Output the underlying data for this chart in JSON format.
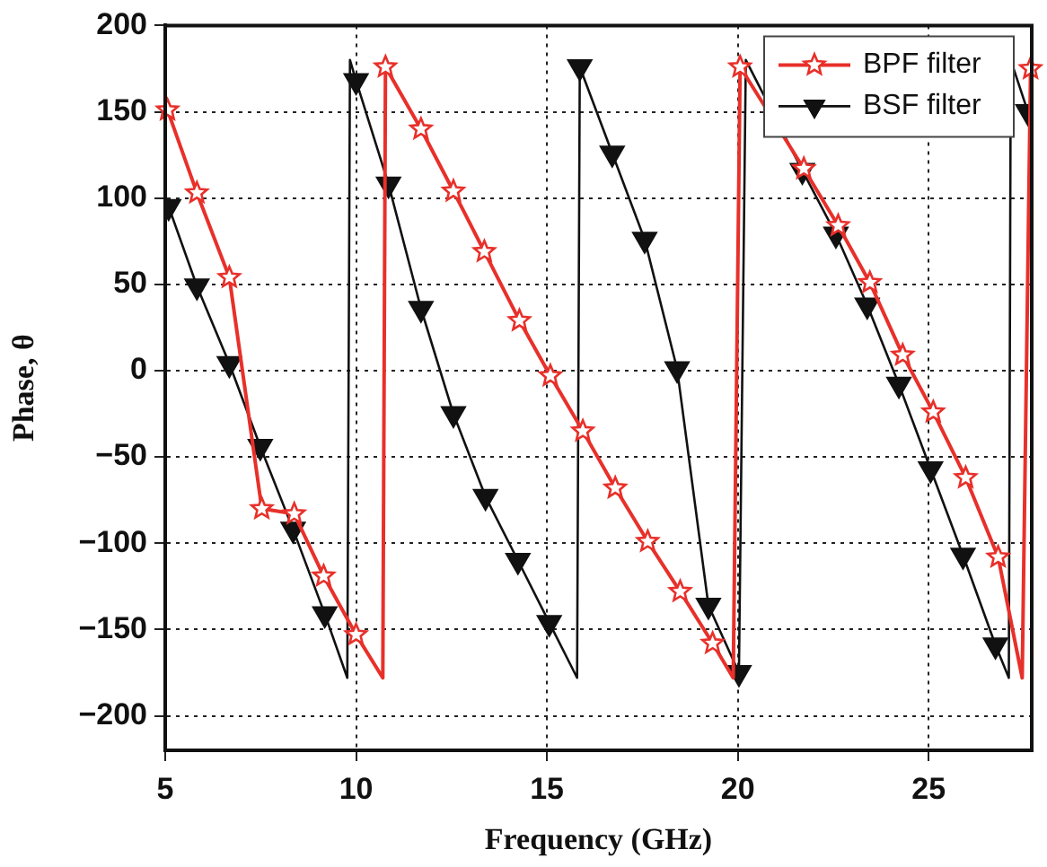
{
  "chart_data": {
    "type": "line",
    "xlabel": "Frequency (GHz)",
    "ylabel": "Phase, θ",
    "xlim": [
      5,
      27.7
    ],
    "xticks": [
      5,
      10,
      15,
      20,
      25
    ],
    "ylim": [
      -220,
      200
    ],
    "yticks": [
      -200,
      -150,
      -100,
      -50,
      0,
      50,
      100,
      150,
      200
    ],
    "grid": true,
    "legend": "top right",
    "line_style": "solid",
    "series": [
      {
        "name": "BPF filter",
        "color": "#e8302a",
        "marker": "star",
        "x": [
          5.06,
          5.83,
          6.68,
          7.53,
          8.38,
          9.15,
          10.0,
          10.7,
          10.77,
          11.7,
          12.55,
          13.36,
          14.28,
          15.09,
          15.94,
          16.79,
          17.64,
          18.49,
          19.34,
          19.88,
          20.06,
          21.73,
          22.63,
          23.46,
          24.32,
          25.12,
          25.97,
          26.82,
          27.45,
          27.67
        ],
        "values": [
          151,
          103,
          54,
          -80,
          -83,
          -119,
          -153,
          -178,
          176,
          140,
          104,
          69,
          29,
          -3,
          -35,
          -68,
          -99,
          -128,
          -158,
          -178,
          176,
          117,
          84,
          51,
          9,
          -24,
          -62,
          -108,
          -178,
          175
        ]
      },
      {
        "name": "BSF filter",
        "color": "#111111",
        "marker": "triangle",
        "x": [
          5.09,
          5.83,
          6.68,
          7.49,
          8.35,
          9.18,
          9.77,
          9.84,
          10.0,
          10.85,
          11.7,
          12.55,
          13.39,
          14.24,
          15.06,
          15.79,
          15.86,
          16.71,
          17.56,
          18.41,
          19.23,
          20.03,
          20.21,
          21.69,
          22.57,
          23.39,
          24.22,
          25.05,
          25.9,
          26.75,
          27.1,
          27.15,
          27.6
        ],
        "values": [
          95,
          49,
          4,
          -44,
          -92,
          -141,
          -178,
          180,
          168,
          108,
          36,
          -25,
          -73,
          -110,
          -146,
          -178,
          176,
          126,
          76,
          1,
          -136,
          -175,
          180,
          116,
          79,
          38,
          -8,
          -57,
          -107,
          -159,
          -178,
          180,
          150
        ]
      }
    ]
  }
}
